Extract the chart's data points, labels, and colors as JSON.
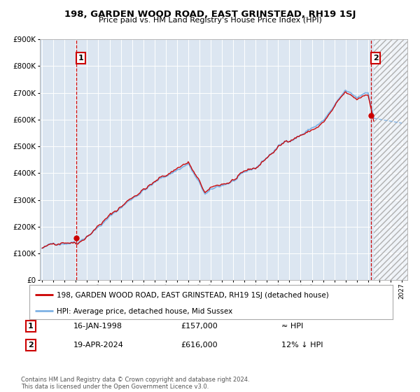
{
  "title": "198, GARDEN WOOD ROAD, EAST GRINSTEAD, RH19 1SJ",
  "subtitle": "Price paid vs. HM Land Registry's House Price Index (HPI)",
  "legend_line1": "198, GARDEN WOOD ROAD, EAST GRINSTEAD, RH19 1SJ (detached house)",
  "legend_line2": "HPI: Average price, detached house, Mid Sussex",
  "annotation1_date": "16-JAN-1998",
  "annotation1_price": "£157,000",
  "annotation1_hpi": "≈ HPI",
  "annotation2_date": "19-APR-2024",
  "annotation2_price": "£616,000",
  "annotation2_hpi": "12% ↓ HPI",
  "footer": "Contains HM Land Registry data © Crown copyright and database right 2024.\nThis data is licensed under the Open Government Licence v3.0.",
  "bg_color": "#dce6f1",
  "hpi_color": "#7fb2e5",
  "price_color": "#cc0000",
  "grid_color": "#ffffff",
  "annotation_box_color": "#cc0000",
  "vline_color": "#cc0000",
  "ylim": [
    0,
    900000
  ],
  "xlim_start": 1994.8,
  "xlim_end": 2027.5,
  "sale1_x": 1998.04,
  "sale1_y": 157000,
  "sale2_x": 2024.29,
  "sale2_y": 616000,
  "future_start": 2024.5
}
